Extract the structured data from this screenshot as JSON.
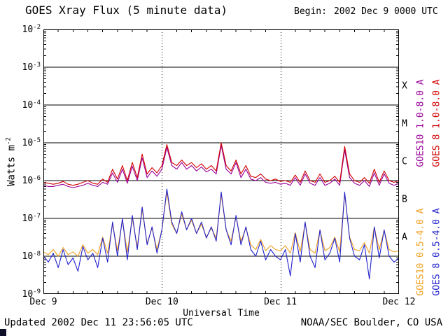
{
  "header": {
    "begin_label": "Begin:",
    "begin_value": "2002 Dec 9 0000 UTC"
  },
  "footer": {
    "updated": "Updated 2002 Dec 11 23:56:05 UTC",
    "credit": "NOAA/SEC Boulder, CO USA"
  },
  "colors": {
    "goes10_long": "#990099",
    "goes8_long": "#d00000",
    "goes10_short": "#f0a020",
    "goes8_short": "#2222cc",
    "grid": "#000000",
    "background": "#ffffff"
  },
  "chart_data": {
    "type": "line",
    "title": "GOES Xray Flux (5 minute data)",
    "xlabel": "Universal Time",
    "ylabel": "Watts m^-2",
    "ylabel_base": "Watts m",
    "ylabel_sup": "-2",
    "y_scale": "log",
    "ylim": [
      1e-09,
      0.01
    ],
    "y_tick_base": "10",
    "y_tick_exponents": [
      "-2",
      "-3",
      "-4",
      "-5",
      "-6",
      "-7",
      "-8",
      "-9"
    ],
    "x_range_hours": [
      0,
      72
    ],
    "x_ticks": [
      "Dec 9",
      "Dec 10",
      "Dec 11",
      "Dec 12"
    ],
    "grid": {
      "horizontal": "solid lines at each decade",
      "vertical": "dotted lines at day boundaries"
    },
    "flare_class_labels": [
      "X",
      "M",
      "C",
      "B",
      "A"
    ],
    "legend_position": "right, rotated vertical",
    "sample_interval_hours": 1,
    "series": [
      {
        "name": "GOES10 1.0-8.0 A",
        "color": "#990099",
        "values": [
          7.5e-07,
          7e-07,
          7e-07,
          7.5e-07,
          8e-07,
          7e-07,
          6.5e-07,
          7e-07,
          7.5e-07,
          8.5e-07,
          7.5e-07,
          7e-07,
          9e-07,
          8e-07,
          1.6e-06,
          9e-07,
          2e-06,
          8.5e-07,
          2.4e-06,
          1e-06,
          4e-06,
          1.2e-06,
          1.8e-06,
          1.3e-06,
          2e-06,
          7.5e-06,
          2.5e-06,
          2e-06,
          3e-06,
          2e-06,
          2.5e-06,
          1.8e-06,
          2.3e-06,
          1.7e-06,
          2e-06,
          1.5e-06,
          8.5e-06,
          2e-06,
          1.5e-06,
          3e-06,
          1.2e-06,
          2e-06,
          1.1e-06,
          1e-06,
          1.2e-06,
          9e-07,
          8.5e-07,
          9e-07,
          8e-07,
          8.5e-07,
          7.5e-07,
          1.2e-06,
          7.5e-07,
          1.5e-06,
          8.5e-07,
          7.5e-07,
          1.2e-06,
          7.5e-07,
          8.5e-07,
          1.1e-06,
          7.5e-07,
          6.5e-06,
          1.2e-06,
          8.5e-07,
          7.5e-07,
          1e-06,
          7e-07,
          1.6e-06,
          7.5e-07,
          1.5e-06,
          8.5e-07,
          7.5e-07,
          8.5e-07
        ]
      },
      {
        "name": "GOES 8 1.0-8.0 A",
        "color": "#d00000",
        "values": [
          9e-07,
          8.5e-07,
          8e-07,
          8.5e-07,
          9.5e-07,
          8e-07,
          7.5e-07,
          8e-07,
          9e-07,
          1e-06,
          8.5e-07,
          8e-07,
          1.1e-06,
          9e-07,
          2e-06,
          1.1e-06,
          2.5e-06,
          1e-06,
          3e-06,
          1.2e-06,
          5e-06,
          1.5e-06,
          2.2e-06,
          1.6e-06,
          2.5e-06,
          9e-06,
          3e-06,
          2.5e-06,
          3.5e-06,
          2.5e-06,
          3e-06,
          2.2e-06,
          2.8e-06,
          2e-06,
          2.5e-06,
          1.8e-06,
          1e-05,
          2.5e-06,
          1.8e-06,
          3.5e-06,
          1.5e-06,
          2.5e-06,
          1.3e-06,
          1.2e-06,
          1.5e-06,
          1.1e-06,
          1e-06,
          1.1e-06,
          9.5e-07,
          1e-06,
          9e-07,
          1.4e-06,
          9e-07,
          1.8e-06,
          1e-06,
          9e-07,
          1.5e-06,
          9e-07,
          1e-06,
          1.3e-06,
          9e-07,
          8e-06,
          1.5e-06,
          1e-06,
          9e-07,
          1.2e-06,
          8.5e-07,
          2e-06,
          9e-07,
          1.8e-06,
          1e-06,
          9e-07,
          1e-06
        ]
      },
      {
        "name": "GOES10 0.5-4.0 A",
        "color": "#f0a020",
        "values": [
          1.3e-08,
          1.1e-08,
          1.5e-08,
          1e-08,
          1.7e-08,
          1.1e-08,
          1.3e-08,
          1e-08,
          2e-08,
          1.2e-08,
          1.5e-08,
          1.1e-08,
          3.2e-08,
          1.2e-08,
          7e-08,
          1.4e-08,
          9e-08,
          1.3e-08,
          1e-07,
          1.8e-08,
          1.7e-07,
          2.2e-08,
          5.5e-08,
          1.5e-08,
          5e-08,
          5e-07,
          7e-08,
          4e-08,
          1.3e-07,
          5e-08,
          9e-08,
          4e-08,
          7e-08,
          3.2e-08,
          5.5e-08,
          3e-08,
          4.2e-07,
          5e-08,
          2.5e-08,
          1.1e-07,
          2.5e-08,
          5.5e-08,
          2e-08,
          1.5e-08,
          2.8e-08,
          1.4e-08,
          1.9e-08,
          1.5e-08,
          1.4e-08,
          1.9e-08,
          1.2e-08,
          4.2e-08,
          1.3e-08,
          7.5e-08,
          1.5e-08,
          1.2e-08,
          4.8e-08,
          1.4e-08,
          1.7e-08,
          3.2e-08,
          1.3e-08,
          4.5e-07,
          3.2e-08,
          1.5e-08,
          1.4e-08,
          2.3e-08,
          1.2e-08,
          5.8e-08,
          1.5e-08,
          4.8e-08,
          1.5e-08,
          1.3e-08,
          1.4e-08
        ]
      },
      {
        "name": "GOES 8 0.5-4.0 A",
        "color": "#2222cc",
        "values": [
          1e-08,
          7e-09,
          1.2e-08,
          5e-09,
          1.5e-08,
          6e-09,
          9e-09,
          4e-09,
          1.8e-08,
          8e-09,
          1.2e-08,
          5e-09,
          3e-08,
          7e-09,
          8e-08,
          1e-08,
          1e-07,
          8e-09,
          1.2e-07,
          1.5e-08,
          2e-07,
          2e-08,
          6e-08,
          1.2e-08,
          5e-08,
          6e-07,
          8e-08,
          4e-08,
          1.5e-07,
          5e-08,
          1e-07,
          4e-08,
          8e-08,
          3e-08,
          6e-08,
          2.5e-08,
          5e-07,
          5e-08,
          2e-08,
          1.2e-07,
          2e-08,
          6e-08,
          1.5e-08,
          1e-08,
          2.5e-08,
          8e-09,
          1.5e-08,
          1e-08,
          8e-09,
          1.5e-08,
          3e-09,
          4e-08,
          7e-09,
          8e-08,
          1e-08,
          5e-09,
          5e-08,
          8e-09,
          1.2e-08,
          3e-08,
          7e-09,
          5e-07,
          3e-08,
          1e-08,
          8e-09,
          2e-08,
          2.5e-09,
          6e-08,
          9e-09,
          5e-08,
          1e-08,
          7e-09,
          9e-09
        ]
      }
    ]
  }
}
